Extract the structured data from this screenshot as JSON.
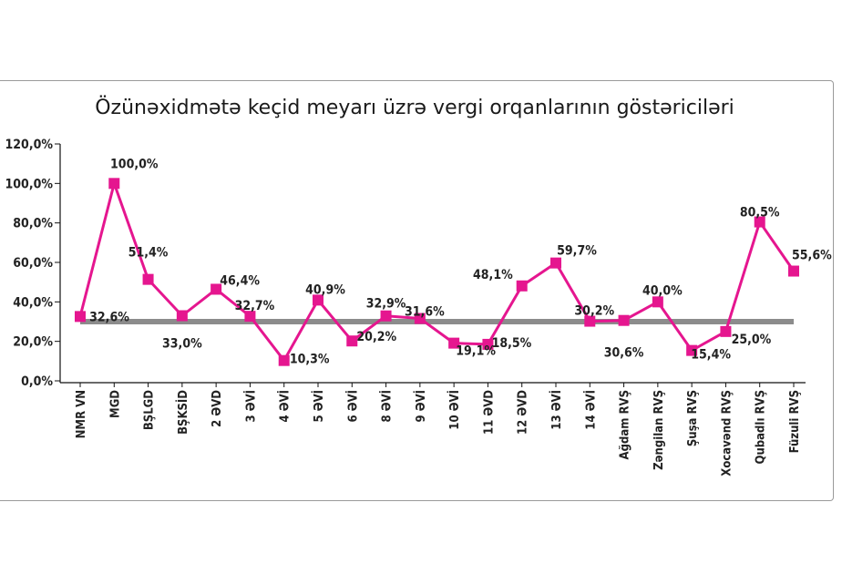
{
  "chart_data": {
    "type": "line",
    "title": "Özünəxidmətə keçid meyarı üzrə vergi orqanlarının göstəriciləri",
    "categories": [
      "NMR VN",
      "MGD",
      "BŞLGD",
      "BŞKSİD",
      "2 ƏVD",
      "3 ƏVİ",
      "4 ƏVİ",
      "5 ƏVİ",
      "6 ƏVİ",
      "8 ƏVİ",
      "9 ƏVİ",
      "10 ƏVİ",
      "11 ƏVD",
      "12 ƏVD",
      "13 ƏVİ",
      "14 ƏVİ",
      "Ağdam RVŞ",
      "Zəngilan RVŞ",
      "Şuşa RVŞ",
      "Xocavənd RVŞ",
      "Qubadlı RVŞ",
      "Füzuli RVŞ"
    ],
    "series": [
      {
        "values": [
          32.6,
          100.0,
          51.4,
          33.0,
          46.4,
          32.7,
          10.3,
          40.9,
          20.2,
          32.9,
          31.6,
          19.1,
          18.5,
          48.1,
          59.7,
          30.2,
          30.6,
          40.0,
          15.4,
          25.0,
          80.5,
          55.6
        ],
        "color": "#e5168f",
        "marker": "square"
      },
      {
        "values": [
          30,
          30,
          30,
          30,
          30,
          30,
          30,
          30,
          30,
          30,
          30,
          30,
          30,
          30,
          30,
          30,
          30,
          30,
          30,
          30,
          30,
          30
        ],
        "color": "#8c8c8c"
      }
    ],
    "data_labels": [
      "32,6%",
      "100,0%",
      "51,4%",
      "33,0%",
      "46,4%",
      "32,7%",
      "10,3%",
      "40,9%",
      "20,2%",
      "32,9%",
      "31,6%",
      "19,1%",
      "18,5%",
      "48,1%",
      "59,7%",
      "30,2%",
      "30,6%",
      "40,0%",
      "15,4%",
      "25,0%",
      "80,5%",
      "55,6%"
    ],
    "y_ticks": [
      "0,0%",
      "20,0%",
      "40,0%",
      "60,0%",
      "80,0%",
      "100,0%",
      "120,0%"
    ],
    "y_tick_values": [
      0,
      20,
      40,
      60,
      80,
      100,
      120
    ],
    "ylim": [
      0,
      120
    ],
    "grid": false,
    "legend": "none"
  }
}
